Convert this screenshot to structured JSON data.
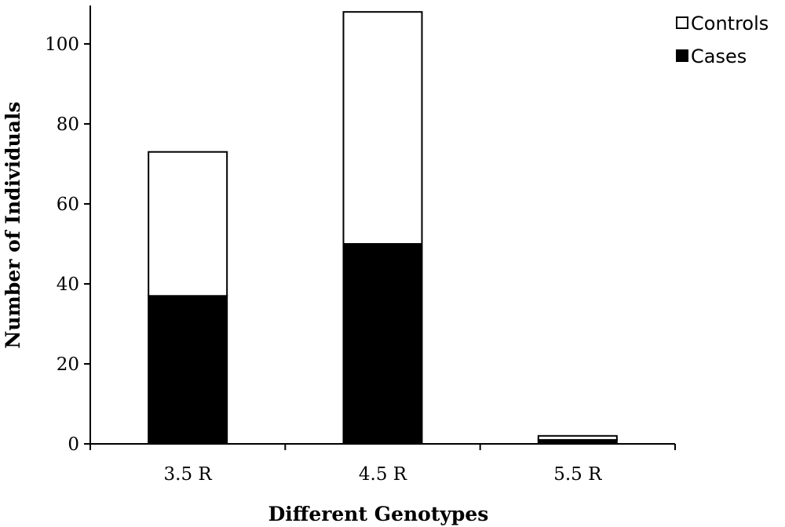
{
  "chart_data": {
    "type": "bar",
    "stacked": true,
    "categories": [
      "3.5 R",
      "4.5 R",
      "5.5 R"
    ],
    "series": [
      {
        "name": "Cases",
        "values": [
          37,
          50,
          1
        ],
        "color": "#000000"
      },
      {
        "name": "Controls",
        "values": [
          36,
          58,
          1
        ],
        "color": "#ffffff"
      }
    ],
    "xlabel": "Different Genotypes",
    "ylabel": "Number of Individuals",
    "ylim": [
      0,
      110
    ],
    "yticks": [
      0,
      20,
      40,
      60,
      80,
      100
    ],
    "grid": false,
    "legend": {
      "position": "top-right",
      "entries": [
        "Controls",
        "Cases"
      ]
    }
  }
}
